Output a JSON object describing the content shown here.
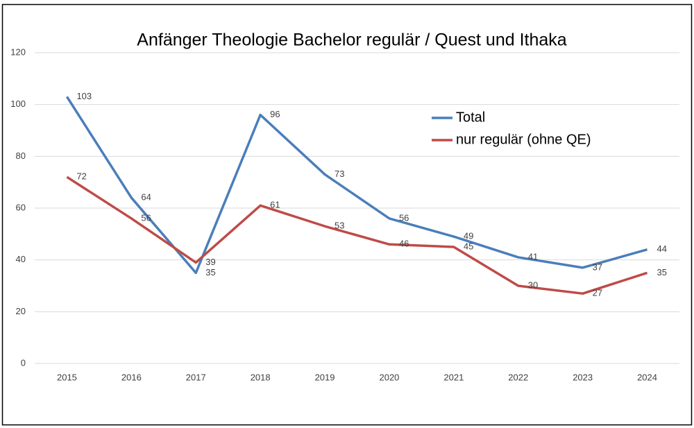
{
  "chart_data": {
    "type": "line",
    "title": "Anfänger Theologie Bachelor regulär / Quest und Ithaka",
    "categories": [
      "2015",
      "2016",
      "2017",
      "2018",
      "2019",
      "2020",
      "2021",
      "2022",
      "2023",
      "2024"
    ],
    "series": [
      {
        "name": "Total",
        "color": "#4a7ebb",
        "values": [
          103,
          64,
          35,
          96,
          73,
          56,
          49,
          41,
          37,
          44
        ]
      },
      {
        "name": "nur regulär (ohne QE)",
        "color": "#be4b48",
        "values": [
          72,
          56,
          39,
          61,
          53,
          46,
          45,
          30,
          27,
          35
        ]
      }
    ],
    "ylim": [
      0,
      120
    ],
    "yticks": [
      0,
      20,
      40,
      60,
      80,
      100,
      120
    ],
    "grid": true,
    "legend": "top-right"
  }
}
